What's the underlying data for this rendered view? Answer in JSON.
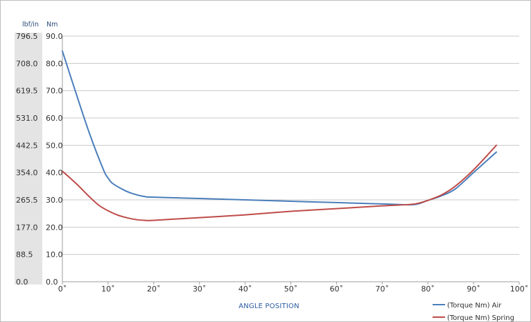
{
  "chart_data": {
    "type": "line",
    "title": "",
    "xlabel": "ANGLE POSITION",
    "ylabel_left": "lbf/in",
    "ylabel_right": "Nm",
    "x_ticks": [
      "0˚",
      "10˚",
      "20˚",
      "30˚",
      "40˚",
      "50˚",
      "60˚",
      "70˚",
      "80˚",
      "90˚",
      "100˚"
    ],
    "y_ticks_nm": [
      "0.0",
      "10.0",
      "20.0",
      "30.0",
      "40.0",
      "50.0",
      "60.0",
      "70.0",
      "80.0",
      "90.0"
    ],
    "y_ticks_lbf": [
      "0.0",
      "88.5",
      "177.0",
      "265.5",
      "354.0",
      "442.5",
      "531.0",
      "619.5",
      "708.0",
      "796.5"
    ],
    "xlim": [
      0,
      100
    ],
    "ylim": [
      0,
      90
    ],
    "grid": true,
    "legend_position": "bottom-right",
    "series": [
      {
        "name": "(Torque Nm) Air",
        "color": "#4a7ebb",
        "x": [
          0,
          3,
          6,
          9,
          10,
          11,
          13,
          15,
          18,
          20,
          30,
          40,
          50,
          60,
          70,
          76,
          78,
          80,
          83,
          86,
          90,
          95
        ],
        "y": [
          84.5,
          69,
          54,
          41,
          38,
          36,
          34,
          32.5,
          31.2,
          31,
          30.5,
          30,
          29.5,
          29,
          28.5,
          28.2,
          28.6,
          29.8,
          31.5,
          34,
          40,
          47.5
        ]
      },
      {
        "name": "(Torque Nm) Spring",
        "color": "#be4b48",
        "x": [
          0,
          3,
          6,
          8,
          10,
          12,
          14,
          16,
          18,
          20,
          30,
          40,
          50,
          60,
          70,
          76,
          78,
          80,
          83,
          86,
          90,
          95
        ],
        "y": [
          40.5,
          36,
          31,
          28,
          26,
          24.5,
          23.5,
          22.8,
          22.5,
          22.5,
          23.5,
          24.5,
          25.8,
          26.8,
          27.8,
          28.3,
          28.8,
          29.8,
          31.8,
          35,
          41,
          50
        ]
      }
    ]
  }
}
